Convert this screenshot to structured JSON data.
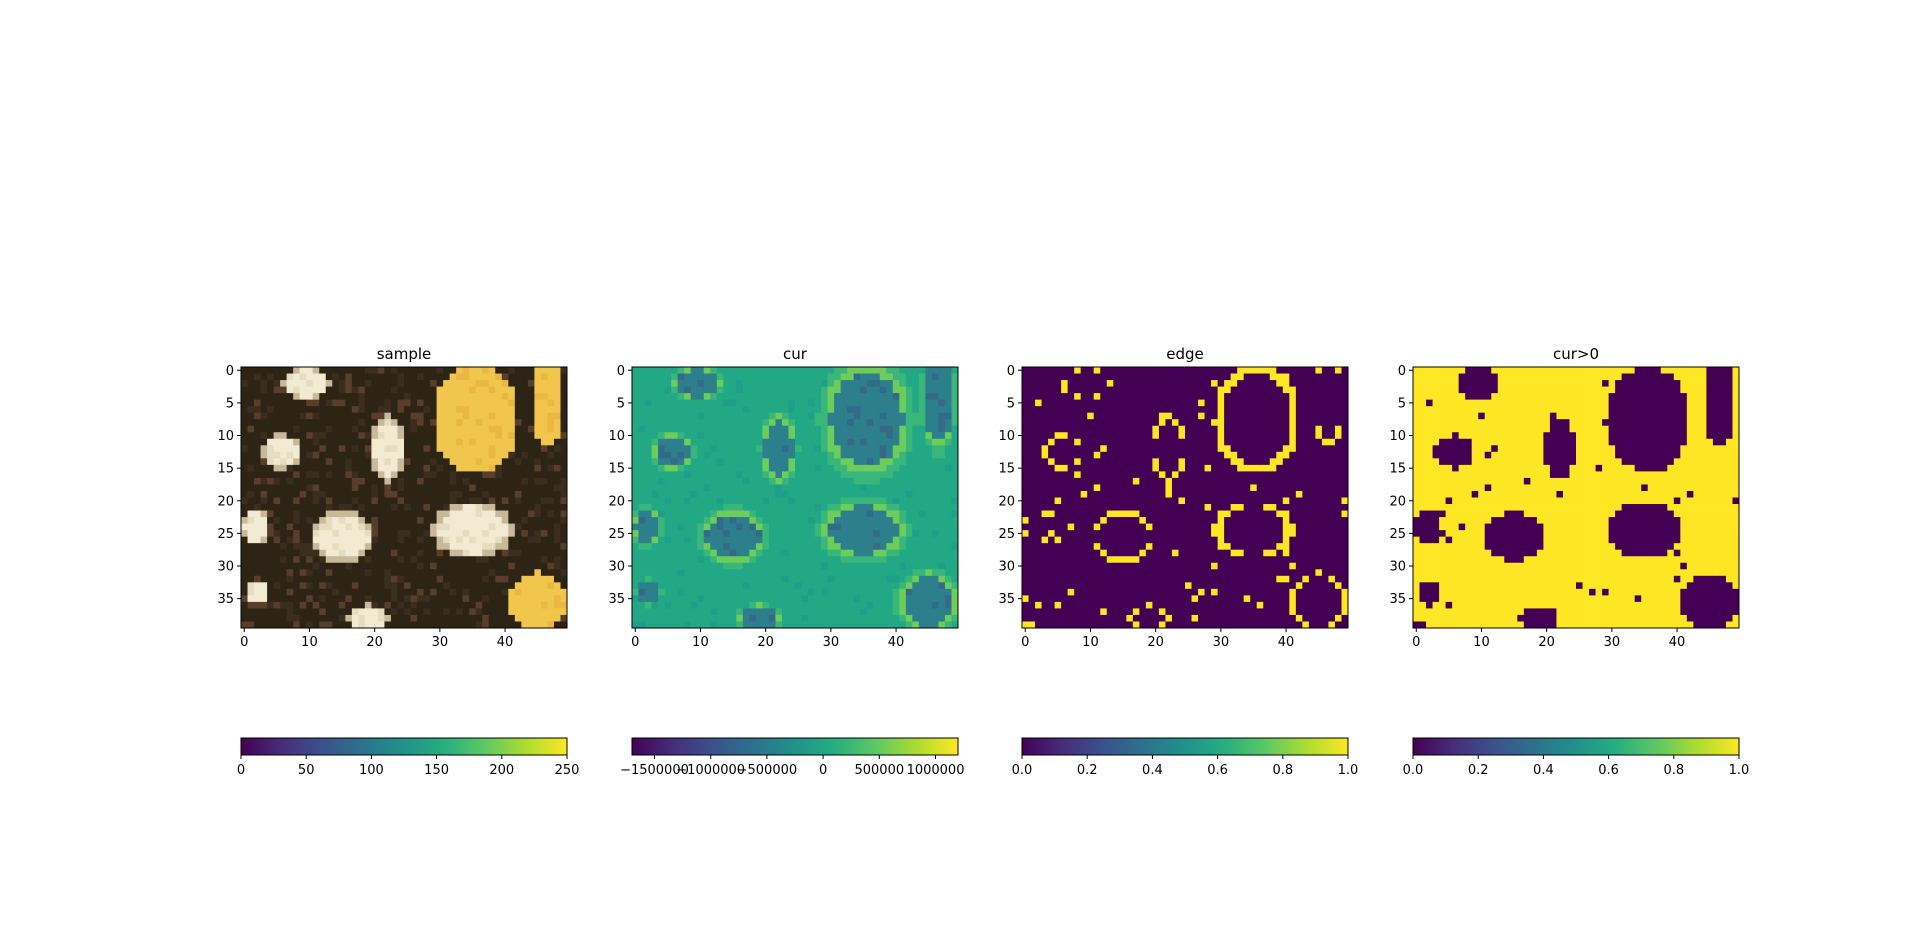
{
  "figure": {
    "background": "#ffffff"
  },
  "chart_data": [
    {
      "type": "heatmap",
      "title": "sample",
      "image_content": "RGB photograph of pale cream and yellow stones separated by dark brown mortar",
      "grid": false,
      "xlim": [
        0,
        49
      ],
      "ylim": [
        39,
        0
      ],
      "xticks": [
        0,
        10,
        20,
        30,
        40
      ],
      "xtick_labels": [
        "0",
        "10",
        "20",
        "30",
        "40"
      ],
      "yticks": [
        0,
        5,
        10,
        15,
        20,
        25,
        30,
        35
      ],
      "ytick_labels": [
        "0",
        "5",
        "10",
        "15",
        "20",
        "25",
        "30",
        "35"
      ],
      "colorbar": {
        "orientation": "horizontal",
        "colormap": "viridis",
        "range": [
          0,
          250
        ],
        "ticks": [
          0,
          50,
          100,
          150,
          200,
          250
        ],
        "tick_labels": [
          "0",
          "50",
          "100",
          "150",
          "200",
          "250"
        ]
      }
    },
    {
      "type": "heatmap",
      "title": "cur",
      "image_content": "mostly uniform teal field; stone regions darker blue-teal with thin yellow-green rims",
      "grid": false,
      "xlim": [
        0,
        49
      ],
      "ylim": [
        39,
        0
      ],
      "xticks": [
        0,
        10,
        20,
        30,
        40
      ],
      "xtick_labels": [
        "0",
        "10",
        "20",
        "30",
        "40"
      ],
      "yticks": [
        0,
        5,
        10,
        15,
        20,
        25,
        30,
        35
      ],
      "ytick_labels": [
        "0",
        "5",
        "10",
        "15",
        "20",
        "25",
        "30",
        "35"
      ],
      "colorbar": {
        "orientation": "horizontal",
        "colormap": "viridis",
        "range": [
          -1700000,
          1200000
        ],
        "ticks": [
          -1500000,
          -1000000,
          -500000,
          0,
          500000,
          1000000
        ],
        "tick_labels": [
          "−1500000",
          "−1000000",
          "−500000",
          "0",
          "500000",
          "1000000"
        ]
      }
    },
    {
      "type": "heatmap",
      "title": "edge",
      "image_content": "binary map: thin yellow outlines of the stones on a dark purple background",
      "grid": false,
      "xlim": [
        0,
        49
      ],
      "ylim": [
        39,
        0
      ],
      "xticks": [
        0,
        10,
        20,
        30,
        40
      ],
      "xtick_labels": [
        "0",
        "10",
        "20",
        "30",
        "40"
      ],
      "yticks": [
        0,
        5,
        10,
        15,
        20,
        25,
        30,
        35
      ],
      "ytick_labels": [
        "0",
        "5",
        "10",
        "15",
        "20",
        "25",
        "30",
        "35"
      ],
      "colorbar": {
        "orientation": "horizontal",
        "colormap": "viridis",
        "range": [
          0,
          1
        ],
        "ticks": [
          0,
          0.2,
          0.4,
          0.6,
          0.8,
          1.0
        ],
        "tick_labels": [
          "0.0",
          "0.2",
          "0.4",
          "0.6",
          "0.8",
          "1.0"
        ]
      }
    },
    {
      "type": "heatmap",
      "title": "cur>0",
      "image_content": "binary map: yellow background with dark purple filled stone blobs",
      "grid": false,
      "xlim": [
        0,
        49
      ],
      "ylim": [
        39,
        0
      ],
      "xticks": [
        0,
        10,
        20,
        30,
        40
      ],
      "xtick_labels": [
        "0",
        "10",
        "20",
        "30",
        "40"
      ],
      "yticks": [
        0,
        5,
        10,
        15,
        20,
        25,
        30,
        35
      ],
      "ytick_labels": [
        "0",
        "5",
        "10",
        "15",
        "20",
        "25",
        "30",
        "35"
      ],
      "colorbar": {
        "orientation": "horizontal",
        "colormap": "viridis",
        "range": [
          0,
          1
        ],
        "ticks": [
          0,
          0.2,
          0.4,
          0.6,
          0.8,
          1.0
        ],
        "tick_labels": [
          "0.0",
          "0.2",
          "0.4",
          "0.6",
          "0.8",
          "1.0"
        ]
      }
    }
  ],
  "colors": {
    "viridis_dark": "#440154",
    "viridis_blue": "#3b528b",
    "viridis_teal": "#21918c",
    "viridis_green": "#5ec962",
    "viridis_yellow": "#fde725",
    "mortar": "#2e2416",
    "stone_cream": "#f2ead2",
    "stone_yellow": "#f0c64c",
    "cur_background": "#22a884",
    "cur_stone": "#2d7f8c",
    "cur_rim": "#6ccd5a"
  }
}
